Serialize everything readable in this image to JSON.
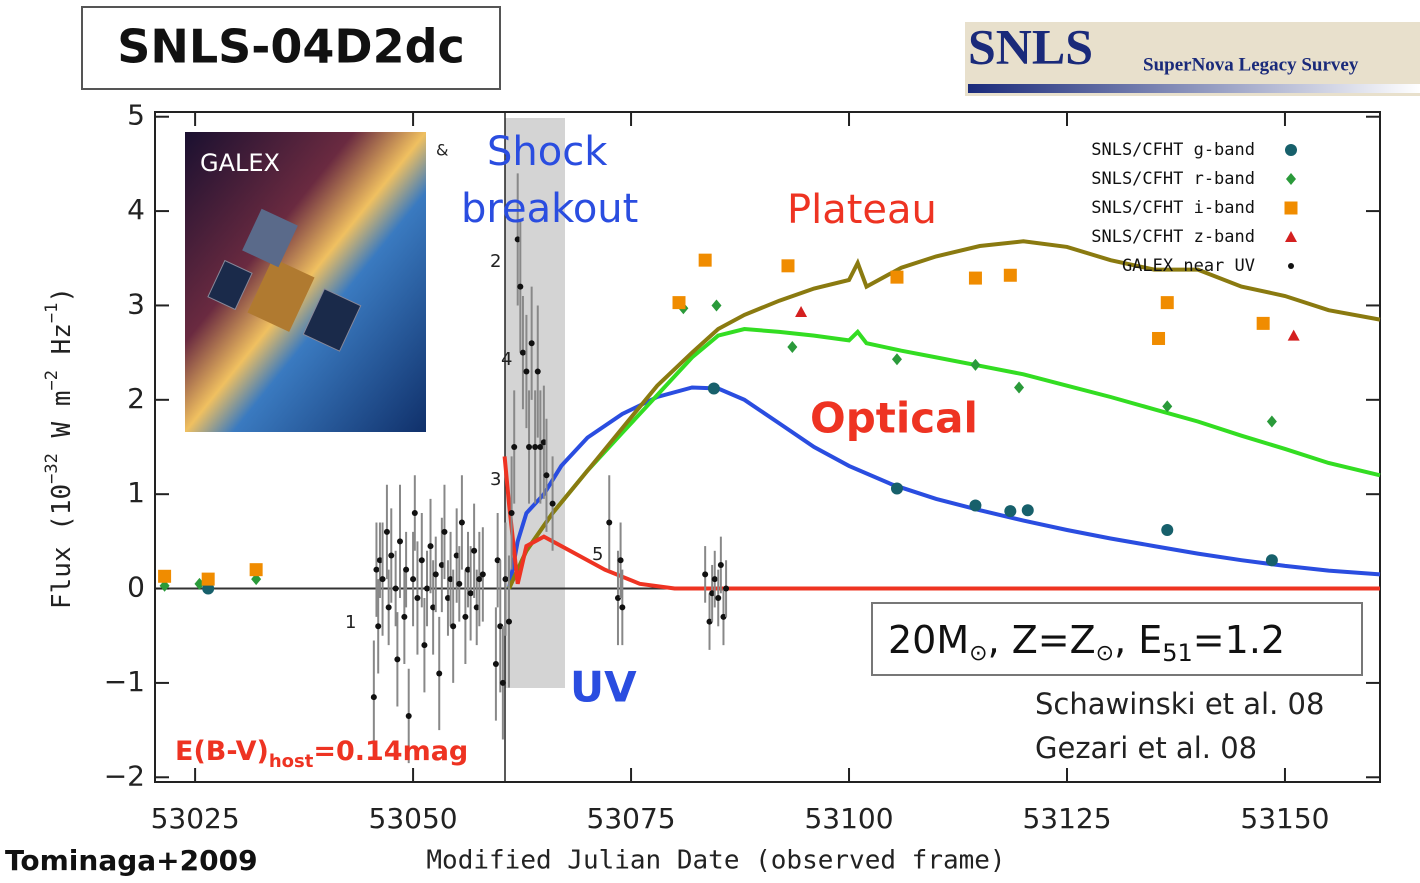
{
  "chart_data": {
    "type": "scatter",
    "title": "SNLS-04D2dc",
    "logo": {
      "name": "SNLS",
      "subtitle": "SuperNova Legacy Survey"
    },
    "inset_label": "GALEX",
    "x_label": "Modified Julian Date (observed frame)",
    "y_label": [
      "Flux (10",
      "−32",
      " W m",
      "−2",
      " Hz",
      "−1",
      ")"
    ],
    "credit": "Tominaga+2009",
    "annotations": [
      "Shock",
      "breakout",
      "Plateau",
      "Optical",
      "UV",
      "&",
      "1",
      "2",
      "3",
      "4",
      "5"
    ],
    "model_text": [
      "20M",
      "⊙",
      ", Z=Z",
      "⊙",
      ", E",
      "51",
      "=1.2"
    ],
    "references": [
      "Schawinski et al. 08",
      "Gezari et al. 08"
    ],
    "extinction": [
      "E(B-V)",
      "host",
      "=0.14mag"
    ],
    "xlim": [
      53020.4,
      53160.9
    ],
    "ylim": [
      -2.05,
      5.05
    ],
    "xticks": [
      53025,
      53050,
      53075,
      53100,
      53125,
      53150
    ],
    "yticks": [
      {
        "value": -2,
        "label": "−2"
      },
      {
        "value": -1,
        "label": "−1"
      },
      0,
      1,
      2,
      3,
      4,
      5
    ],
    "legend": "upper right",
    "series": [
      {
        "name": "SNLS/CFHT g-band",
        "color": "#17606b",
        "marker": "circle",
        "x": [
          53026.5,
          53084.5,
          53105.5,
          53114.5,
          53118.5,
          53120.5,
          53136.5,
          53148.5
        ],
        "values": [
          0.0,
          2.12,
          1.06,
          0.88,
          0.82,
          0.83,
          0.62,
          0.3
        ]
      },
      {
        "name": "SNLS/CFHT r-band",
        "color": "#2a9a3a",
        "marker": "diamond",
        "x": [
          53021.5,
          53025.5,
          53032,
          53081,
          53084.8,
          53093.5,
          53105.5,
          53114.5,
          53119.5,
          53136.5,
          53148.5
        ],
        "values": [
          0.03,
          0.05,
          0.1,
          2.97,
          3.0,
          2.56,
          2.43,
          2.37,
          2.13,
          1.93,
          1.77
        ]
      },
      {
        "name": "SNLS/CFHT i-band",
        "color": "#f08c00",
        "marker": "square",
        "x": [
          53021.5,
          53026.5,
          53032,
          53080.5,
          53083.5,
          53093,
          53105.5,
          53114.5,
          53118.5,
          53135.5,
          53136.5,
          53147.5
        ],
        "values": [
          0.13,
          0.1,
          0.2,
          3.03,
          3.48,
          3.42,
          3.3,
          3.29,
          3.32,
          2.65,
          3.03,
          2.81
        ]
      },
      {
        "name": "SNLS/CFHT z-band",
        "color": "#d42020",
        "marker": "triangle",
        "x": [
          53094.5,
          53151
        ],
        "values": [
          2.93,
          2.68
        ]
      },
      {
        "name": "GALEX near UV",
        "color": "#111111",
        "marker": "dot",
        "x": [
          53045.5,
          53045.8,
          53046,
          53046.2,
          53046.5,
          53047,
          53047.2,
          53047.5,
          53048,
          53048.2,
          53048.5,
          53049,
          53049.2,
          53049.5,
          53050,
          53050.2,
          53050.5,
          53051,
          53051.3,
          53051.6,
          53052,
          53052.3,
          53052.6,
          53053,
          53053.3,
          53053.6,
          53054,
          53054.3,
          53054.6,
          53055,
          53055.3,
          53055.6,
          53056,
          53056.3,
          53056.6,
          53057,
          53057.3,
          53057.6,
          53058,
          53059.5,
          53059.7,
          53060,
          53060.3,
          53060.6,
          53061,
          53061.3,
          53061.6,
          53062,
          53062.3,
          53062.6,
          53063,
          53063.3,
          53063.6,
          53064,
          53064.3,
          53064.6,
          53065,
          53065.3,
          53066,
          53072.5,
          53073.5,
          53073.8,
          53074,
          53083.5,
          53084,
          53084.3,
          53084.6,
          53085,
          53085.3,
          53085.6,
          53085.9
        ],
        "values": [
          -1.15,
          0.2,
          -0.4,
          0.3,
          0.1,
          0.6,
          -0.2,
          0.35,
          0.0,
          -0.75,
          0.5,
          -0.3,
          0.2,
          -1.35,
          0.1,
          0.8,
          -0.1,
          0.3,
          -0.6,
          0.0,
          0.45,
          -0.2,
          0.15,
          -0.9,
          0.25,
          0.6,
          -0.1,
          0.1,
          -0.4,
          0.35,
          0.05,
          0.7,
          -0.3,
          0.2,
          -0.05,
          0.4,
          -0.2,
          0.1,
          0.15,
          -0.8,
          0.3,
          -0.4,
          -1.0,
          0.1,
          -0.35,
          0.8,
          1.5,
          3.7,
          3.2,
          2.5,
          2.3,
          1.5,
          2.6,
          1.5,
          2.3,
          1.5,
          1.55,
          1.2,
          0.9,
          0.7,
          -0.1,
          0.3,
          -0.2,
          0.15,
          -0.35,
          -0.05,
          0.1,
          -0.1,
          0.25,
          -0.3,
          0.0
        ],
        "errors": [
          0.6,
          0.5,
          0.5,
          0.4,
          0.6,
          0.5,
          0.4,
          0.5,
          0.4,
          0.5,
          0.6,
          0.5,
          0.4,
          0.5,
          0.5,
          0.4,
          0.6,
          0.5,
          0.5,
          0.4,
          0.5,
          0.5,
          0.4,
          0.6,
          0.5,
          0.5,
          0.4,
          0.5,
          0.6,
          0.5,
          0.4,
          0.5,
          0.5,
          0.4,
          0.5,
          0.5,
          0.4,
          0.5,
          0.5,
          0.6,
          0.5,
          0.7,
          0.6,
          0.6,
          0.7,
          0.6,
          0.6,
          0.7,
          0.7,
          0.6,
          0.6,
          0.6,
          0.6,
          0.6,
          0.7,
          0.6,
          0.6,
          0.6,
          0.5,
          0.5,
          0.5,
          0.4,
          0.4,
          0.3,
          0.3,
          0.3,
          0.3,
          0.3,
          0.3,
          0.3,
          0.3
        ]
      }
    ],
    "model_curves": [
      {
        "color": "#2a4de0",
        "x": [
          53061,
          53062,
          53063,
          53065,
          53067,
          53070,
          53074,
          53078,
          53082,
          53085,
          53088,
          53092,
          53096,
          53100,
          53105,
          53110,
          53115,
          53120,
          53125,
          53130,
          53135,
          53140,
          53145,
          53150,
          53155,
          53160.9
        ],
        "values": [
          0.0,
          0.5,
          0.8,
          1.0,
          1.3,
          1.6,
          1.85,
          2.03,
          2.13,
          2.12,
          2.0,
          1.75,
          1.5,
          1.3,
          1.1,
          0.95,
          0.83,
          0.72,
          0.62,
          0.53,
          0.45,
          0.37,
          0.3,
          0.24,
          0.19,
          0.15
        ]
      },
      {
        "color": "#33dd22",
        "x": [
          53061,
          53063,
          53066,
          53070,
          53074,
          53078,
          53082,
          53085,
          53088,
          53092,
          53096,
          53100,
          53101,
          53102,
          53106,
          53110,
          53115,
          53120,
          53125,
          53130,
          53135,
          53140,
          53145,
          53150,
          53155,
          53160.9
        ],
        "values": [
          0.0,
          0.4,
          0.8,
          1.25,
          1.65,
          2.05,
          2.45,
          2.68,
          2.75,
          2.72,
          2.68,
          2.63,
          2.72,
          2.6,
          2.52,
          2.45,
          2.36,
          2.27,
          2.15,
          2.03,
          1.9,
          1.77,
          1.62,
          1.48,
          1.33,
          1.2
        ]
      },
      {
        "color": "#8a7a10",
        "x": [
          53061,
          53063,
          53066,
          53070,
          53074,
          53078,
          53082,
          53085,
          53088,
          53092,
          53096,
          53100,
          53101,
          53102,
          53106,
          53110,
          53115,
          53120,
          53125,
          53130,
          53135,
          53140,
          53145,
          53150,
          53155,
          53160.9
        ],
        "values": [
          0.0,
          0.4,
          0.8,
          1.25,
          1.7,
          2.15,
          2.5,
          2.75,
          2.9,
          3.05,
          3.18,
          3.27,
          3.45,
          3.2,
          3.4,
          3.52,
          3.63,
          3.68,
          3.62,
          3.48,
          3.38,
          3.38,
          3.2,
          3.1,
          2.95,
          2.85
        ]
      },
      {
        "color": "#ee3322",
        "x": [
          53060.5,
          53061,
          53062,
          53063,
          53065,
          53068,
          53072,
          53076,
          53080,
          53160.9
        ],
        "values": [
          1.4,
          0.9,
          0.05,
          0.45,
          0.55,
          0.4,
          0.2,
          0.05,
          0.0,
          0.0
        ]
      }
    ]
  }
}
